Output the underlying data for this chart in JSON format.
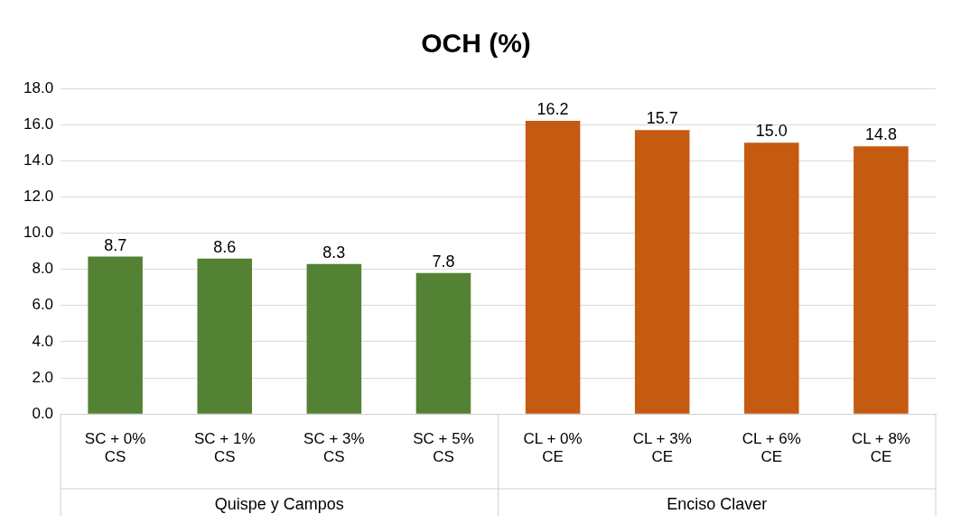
{
  "chart_data": {
    "type": "bar",
    "title": "OCH (%)",
    "categories": [
      "SC + 0% CS",
      "SC + 1% CS",
      "SC + 3% CS",
      "SC + 5% CS",
      "CL + 0% CE",
      "CL + 3% CE",
      "CL + 6% CE",
      "CL + 8% CE"
    ],
    "values": [
      8.7,
      8.6,
      8.3,
      7.8,
      16.2,
      15.7,
      15.0,
      14.8
    ],
    "value_labels": [
      "8.7",
      "8.6",
      "8.3",
      "7.8",
      "16.2",
      "15.7",
      "15.0",
      "14.8"
    ],
    "colors": [
      "#548235",
      "#548235",
      "#548235",
      "#548235",
      "#c55a11",
      "#c55a11",
      "#c55a11",
      "#c55a11"
    ],
    "ylim": [
      0,
      18
    ],
    "yticks": [
      {
        "value": 0,
        "label": "0.0"
      },
      {
        "value": 2,
        "label": "2.0"
      },
      {
        "value": 4,
        "label": "4.0"
      },
      {
        "value": 6,
        "label": "6.0"
      },
      {
        "value": 8,
        "label": "8.0"
      },
      {
        "value": 10,
        "label": "10.0"
      },
      {
        "value": 12,
        "label": "12.0"
      },
      {
        "value": 14,
        "label": "14.0"
      },
      {
        "value": 16,
        "label": "16.0"
      },
      {
        "value": 18,
        "label": "18.0"
      }
    ],
    "grid": "y",
    "annotations": [
      "Quispe y Campos",
      "Enciso Claver"
    ]
  }
}
